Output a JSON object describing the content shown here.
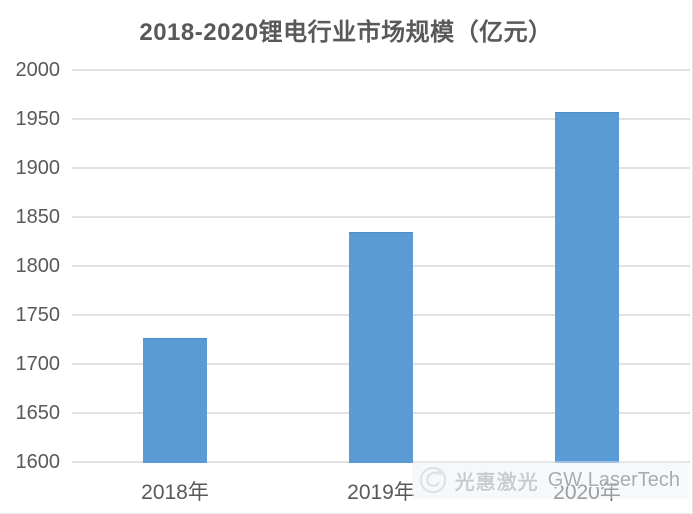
{
  "title": "2018-2020锂电行业市场规模（亿元）",
  "chart_data": {
    "type": "bar",
    "title": "2018-2020锂电行业市场规模（亿元）",
    "categories": [
      "2018年",
      "2019年",
      "2020年"
    ],
    "values": [
      1727,
      1835,
      1957
    ],
    "xlabel": "",
    "ylabel": "",
    "ylim": [
      1600,
      2000
    ],
    "yticks": [
      1600,
      1650,
      1700,
      1750,
      1800,
      1850,
      1900,
      1950,
      2000
    ],
    "grid": true,
    "legend_position": "none",
    "bar_color": "#5B9BD5"
  },
  "colors": {
    "bar": "#5B9BD5",
    "axis_text": "#595959",
    "title_text": "#595959",
    "gridline": "#E2E2E2",
    "background": "#FFFFFF"
  },
  "watermark": {
    "logo_icon": "gw-laser-logo",
    "text_cn": "光惠激光",
    "text_en": "GW LaserTech"
  }
}
